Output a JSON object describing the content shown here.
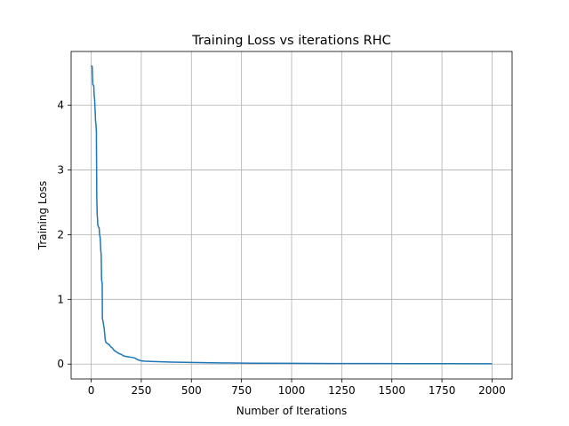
{
  "chart_data": {
    "type": "line",
    "title": "Training Loss vs iterations RHC",
    "xlabel": "Number of Iterations",
    "ylabel": "Training Loss",
    "xlim": [
      -100,
      2100
    ],
    "ylim": [
      -0.23,
      4.83
    ],
    "xticks": [
      0,
      250,
      500,
      750,
      1000,
      1250,
      1500,
      1750,
      2000
    ],
    "xtick_labels": [
      "0",
      "250",
      "500",
      "750",
      "1000",
      "1250",
      "1500",
      "1750",
      "2000"
    ],
    "yticks": [
      0,
      1,
      2,
      3,
      4
    ],
    "ytick_labels": [
      "0",
      "1",
      "2",
      "3",
      "4"
    ],
    "grid": true,
    "line_color": "#1f77b4",
    "series": [
      {
        "x": [
          0,
          5,
          8,
          10,
          13,
          15,
          17,
          20,
          22,
          24,
          26,
          28,
          30,
          31,
          33,
          36,
          40,
          42,
          45,
          48,
          50,
          52,
          55,
          56,
          58,
          60,
          62,
          65,
          68,
          70,
          72,
          75,
          80,
          85,
          90,
          95,
          100,
          105,
          110,
          115,
          120,
          125,
          130,
          140,
          150,
          160,
          170,
          180,
          190,
          200,
          210,
          220,
          230,
          240,
          250,
          270,
          300,
          350,
          400,
          500,
          600,
          700,
          800,
          1000,
          1200,
          1400,
          1600,
          1800,
          2000
        ],
        "y": [
          4.61,
          4.6,
          4.32,
          4.31,
          4.3,
          4.15,
          4.1,
          3.9,
          3.75,
          3.7,
          3.6,
          2.6,
          2.3,
          2.28,
          2.15,
          2.12,
          2.1,
          2.0,
          1.95,
          1.75,
          1.7,
          1.3,
          1.25,
          0.7,
          0.68,
          0.65,
          0.6,
          0.55,
          0.45,
          0.38,
          0.35,
          0.33,
          0.32,
          0.31,
          0.3,
          0.28,
          0.26,
          0.25,
          0.23,
          0.21,
          0.2,
          0.19,
          0.18,
          0.16,
          0.15,
          0.13,
          0.12,
          0.115,
          0.11,
          0.105,
          0.1,
          0.09,
          0.07,
          0.06,
          0.05,
          0.045,
          0.04,
          0.035,
          0.03,
          0.025,
          0.02,
          0.017,
          0.014,
          0.011,
          0.009,
          0.008,
          0.007,
          0.006,
          0.005
        ]
      }
    ]
  }
}
